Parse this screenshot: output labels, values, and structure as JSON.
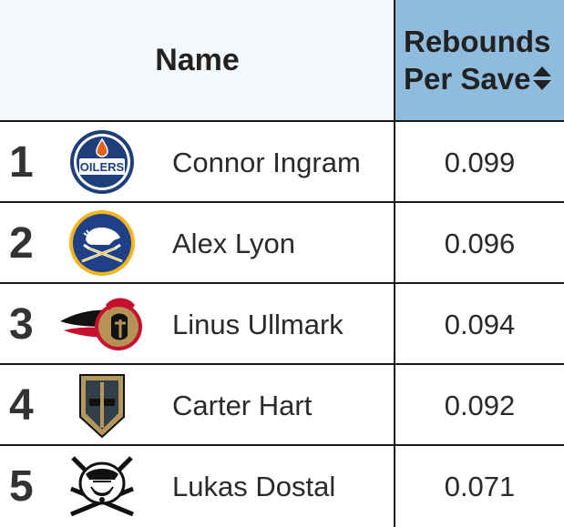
{
  "header": {
    "name_label": "Name",
    "stat_label_line1": "Rebounds",
    "stat_label_line2": "Per Save"
  },
  "rows": [
    {
      "rank": "1",
      "player": "Connor Ingram",
      "value": "0.099",
      "logo_icon": "oilers-logo-icon"
    },
    {
      "rank": "2",
      "player": "Alex Lyon",
      "value": "0.096",
      "logo_icon": "sabres-logo-icon"
    },
    {
      "rank": "3",
      "player": "Linus Ullmark",
      "value": "0.094",
      "logo_icon": "senators-logo-icon"
    },
    {
      "rank": "4",
      "player": "Carter Hart",
      "value": "0.092",
      "logo_icon": "golden-knights-logo-icon"
    },
    {
      "rank": "5",
      "player": "Lukas Dostal",
      "value": "0.071",
      "logo_icon": "ducks-logo-icon"
    }
  ],
  "logo_texts": {
    "oilers": "OILERS"
  },
  "colors": {
    "header_name_bg": "#f4f8fb",
    "header_stat_bg": "#8fbbdc",
    "border": "#1a1a1a"
  }
}
